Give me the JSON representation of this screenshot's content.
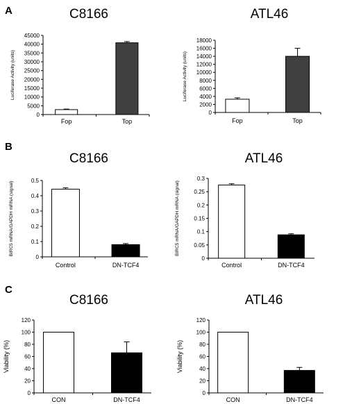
{
  "panels": [
    {
      "letter": "A"
    },
    {
      "letter": "B"
    },
    {
      "letter": "C"
    }
  ],
  "chart_data": [
    {
      "type": "bar",
      "panel": "A",
      "title": "C8166",
      "ylabel": "Luciferase Activity (units)",
      "categories": [
        "Fop",
        "Top"
      ],
      "values": [
        2800,
        40800
      ],
      "errors": [
        300,
        700
      ],
      "bar_colors": [
        "#ffffff",
        "#404040"
      ],
      "ylim": [
        0,
        45000
      ],
      "yticks": [
        0,
        5000,
        10000,
        15000,
        20000,
        25000,
        30000,
        35000,
        40000,
        45000
      ],
      "ytick_labels": [
        "0",
        "5000",
        "10000",
        "15000",
        "20000",
        "25000",
        "30000",
        "35000",
        "40000",
        "45000"
      ],
      "grid": false
    },
    {
      "type": "bar",
      "panel": "A",
      "title": "ATL46",
      "ylabel": "Luciferase Activity (units)",
      "categories": [
        "Fop",
        "Top"
      ],
      "values": [
        3300,
        14000
      ],
      "errors": [
        350,
        2000
      ],
      "bar_colors": [
        "#ffffff",
        "#404040"
      ],
      "ylim": [
        0,
        18000
      ],
      "yticks": [
        0,
        2000,
        4000,
        6000,
        8000,
        10000,
        12000,
        14000,
        16000,
        18000
      ],
      "ytick_labels": [
        "0",
        "2000",
        "4000",
        "6000",
        "8000",
        "10000",
        "12000",
        "14000",
        "16000",
        "18000"
      ],
      "grid": false
    },
    {
      "type": "bar",
      "panel": "B",
      "title": "C8166",
      "ylabel": "BIRC5 mRNA/GAPDH mRNA (signal)",
      "categories": [
        "Control",
        "DN-TCF4"
      ],
      "values": [
        0.443,
        0.08
      ],
      "errors": [
        0.009,
        0.007
      ],
      "bar_colors": [
        "#ffffff",
        "#000000"
      ],
      "ylim": [
        0,
        0.5
      ],
      "yticks": [
        0,
        0.1,
        0.2,
        0.3,
        0.4,
        0.5
      ],
      "ytick_labels": [
        "0",
        "0.1",
        "0.2",
        "0.3",
        "0.4",
        "0.5"
      ],
      "grid": false
    },
    {
      "type": "bar",
      "panel": "B",
      "title": "ATL46",
      "ylabel": "BIRC5 mRNA/GAPDH mRNA (signal)",
      "categories": [
        "Control",
        "DN-TCF4"
      ],
      "values": [
        0.275,
        0.088
      ],
      "errors": [
        0.005,
        0.004
      ],
      "bar_colors": [
        "#ffffff",
        "#000000"
      ],
      "ylim": [
        0,
        0.3
      ],
      "yticks": [
        0,
        0.05,
        0.1,
        0.15,
        0.2,
        0.25,
        0.3
      ],
      "ytick_labels": [
        "0",
        "0.05",
        "0.1",
        "0.15",
        "0.2",
        "0.25",
        "0.3"
      ],
      "grid": false
    },
    {
      "type": "bar",
      "panel": "C",
      "title": "C8166",
      "ylabel": "Viability (%)",
      "categories": [
        "CON",
        "DN-TCF4"
      ],
      "values": [
        100,
        66
      ],
      "errors": [
        0,
        18
      ],
      "bar_colors": [
        "#ffffff",
        "#000000"
      ],
      "ylim": [
        0,
        120
      ],
      "yticks": [
        0,
        20,
        40,
        60,
        80,
        100,
        120
      ],
      "ytick_labels": [
        "0",
        "20",
        "40",
        "60",
        "80",
        "100",
        "120"
      ],
      "grid": false
    },
    {
      "type": "bar",
      "panel": "C",
      "title": "ATL46",
      "ylabel": "Viability (%)",
      "categories": [
        "CON",
        "DN-TCF4"
      ],
      "values": [
        100,
        37
      ],
      "errors": [
        0,
        5
      ],
      "bar_colors": [
        "#ffffff",
        "#000000"
      ],
      "ylim": [
        0,
        120
      ],
      "yticks": [
        0,
        20,
        40,
        60,
        80,
        100,
        120
      ],
      "ytick_labels": [
        "0",
        "20",
        "40",
        "60",
        "80",
        "100",
        "120"
      ],
      "grid": false
    }
  ]
}
